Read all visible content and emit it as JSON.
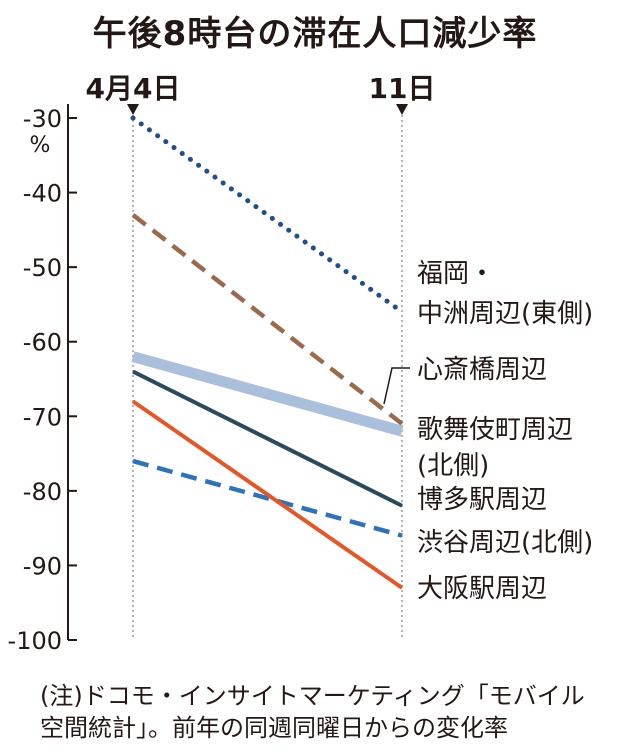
{
  "chart_data": {
    "type": "line",
    "title": "午後8時台の滞在人口減少率",
    "categories": [
      "4月4日",
      "11日"
    ],
    "ylabel": "%",
    "ylim": [
      -100,
      -30
    ],
    "yticks": [
      "-30",
      "-40",
      "-50",
      "-60",
      "-70",
      "-80",
      "-90",
      "-100"
    ],
    "series": [
      {
        "name": "福岡・中洲周辺(東側)",
        "label_lines": [
          "福岡・",
          "中洲周辺(東側)"
        ],
        "values": [
          -30,
          -56
        ],
        "color": "#1d4f8c",
        "style": "dotted"
      },
      {
        "name": "心斎橋周辺",
        "label_lines": [
          "心斎橋周辺"
        ],
        "values": [
          -43,
          -71
        ],
        "color": "#9b6a4d",
        "style": "dashed"
      },
      {
        "name": "歌舞伎町周辺(北側)",
        "label_lines": [
          "歌舞伎町周辺",
          "(北側)"
        ],
        "values": [
          -62,
          -72
        ],
        "color": "#a9bfdb",
        "style": "thick"
      },
      {
        "name": "博多駅周辺",
        "label_lines": [
          "博多駅周辺"
        ],
        "values": [
          -64,
          -82
        ],
        "color": "#2b4a5e",
        "style": "solid"
      },
      {
        "name": "渋谷周辺(北側)",
        "label_lines": [
          "渋谷周辺(北側)"
        ],
        "values": [
          -76,
          -86
        ],
        "color": "#2f72b5",
        "style": "dashed"
      },
      {
        "name": "大阪駅周辺",
        "label_lines": [
          "大阪駅周辺"
        ],
        "values": [
          -68,
          -93
        ],
        "color": "#e0592a",
        "style": "solid"
      }
    ],
    "note": [
      "(注)ドコモ・インサイトマーケティング「モバイル",
      "空間統計」。前年の同週同曜日からの変化率"
    ]
  }
}
